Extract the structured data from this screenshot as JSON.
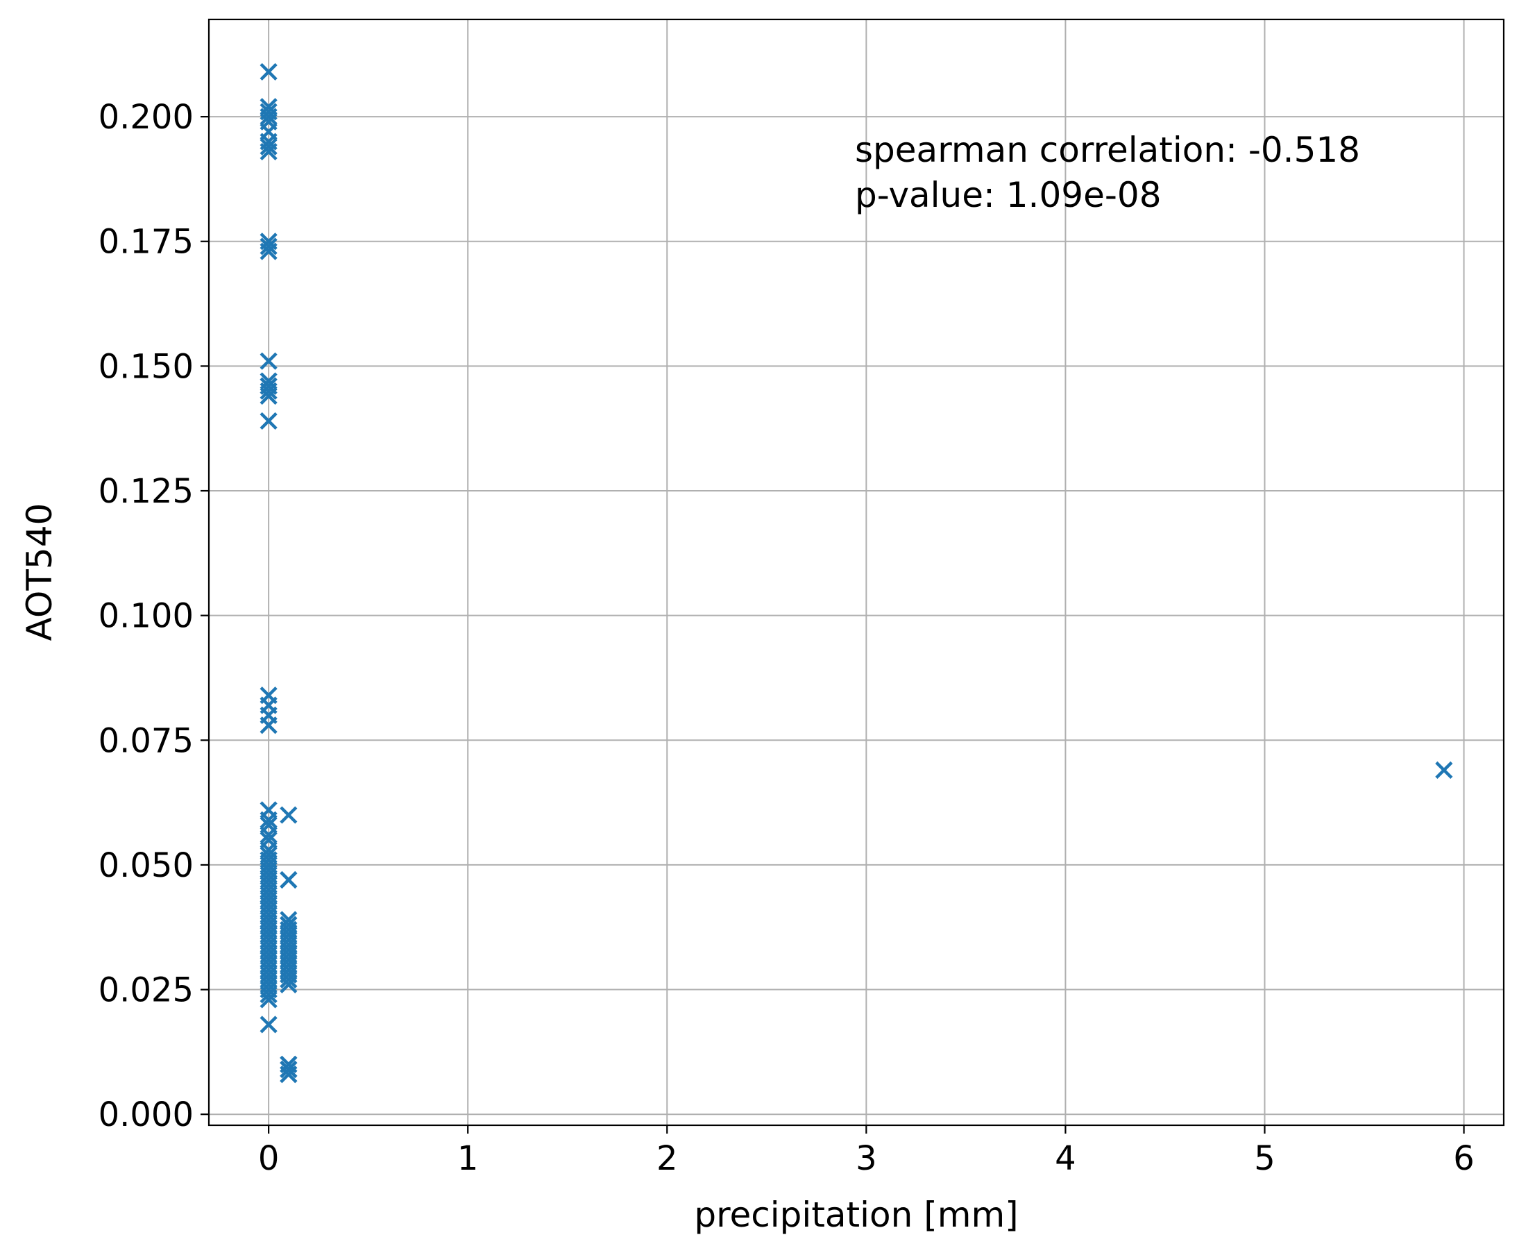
{
  "chart_data": {
    "type": "scatter",
    "title": "",
    "xlabel": "precipitation [mm]",
    "ylabel": "AOT540",
    "xlim": [
      -0.3,
      6.2
    ],
    "ylim": [
      -0.0022,
      0.2195
    ],
    "xticks": [
      0,
      1,
      2,
      3,
      4,
      5,
      6
    ],
    "xtick_labels": [
      "0",
      "1",
      "2",
      "3",
      "4",
      "5",
      "6"
    ],
    "yticks": [
      0,
      0.025,
      0.05,
      0.075,
      0.1,
      0.125,
      0.15,
      0.175,
      0.2
    ],
    "ytick_labels": [
      "0.000",
      "0.025",
      "0.050",
      "0.075",
      "0.100",
      "0.125",
      "0.150",
      "0.175",
      "0.200"
    ],
    "grid": true,
    "marker": "x",
    "color": "#1f77b4",
    "annotation": {
      "lines": [
        "spearman correlation: -0.518",
        "p-value: 1.09e-08"
      ],
      "position": "top-right"
    },
    "series": [
      {
        "x": [
          0,
          0,
          0,
          0,
          0,
          0,
          0,
          0,
          0,
          0,
          0,
          0,
          0,
          0,
          0,
          0,
          0,
          0,
          0,
          0,
          0,
          0,
          0,
          0,
          0,
          0,
          0,
          0,
          0,
          0,
          0,
          0,
          0,
          0,
          0,
          0,
          0,
          0,
          0,
          0,
          0,
          0,
          0,
          0,
          0,
          0,
          0,
          0,
          0,
          0,
          0,
          0,
          0,
          0,
          0,
          0,
          0,
          0,
          0,
          0,
          0,
          0,
          0,
          0,
          0,
          0,
          0.1,
          0.1,
          0.1,
          0.1,
          0.1,
          0.1,
          0.1,
          0.1,
          0.1,
          0.1,
          0.1,
          0.1,
          0.1,
          0.1,
          0.1,
          0.1,
          0.1,
          0.1,
          0.1,
          0.1,
          0.1,
          0.1,
          0.1,
          0.1,
          0.1,
          0.1,
          0.1,
          0.1,
          0.1,
          0.1,
          0.1,
          0.1,
          0.1,
          0.1,
          0.1,
          0.1,
          0.1,
          0.1,
          0.1,
          0.1,
          5.9
        ],
        "y": [
          0.209,
          0.202,
          0.201,
          0.2,
          0.199,
          0.197,
          0.195,
          0.194,
          0.193,
          0.175,
          0.174,
          0.173,
          0.151,
          0.147,
          0.146,
          0.146,
          0.145,
          0.144,
          0.139,
          0.084,
          0.082,
          0.08,
          0.078,
          0.061,
          0.059,
          0.058,
          0.056,
          0.055,
          0.053,
          0.052,
          0.051,
          0.05,
          0.049,
          0.048,
          0.047,
          0.046,
          0.045,
          0.044,
          0.043,
          0.042,
          0.041,
          0.04,
          0.039,
          0.038,
          0.037,
          0.036,
          0.035,
          0.034,
          0.033,
          0.032,
          0.031,
          0.03,
          0.029,
          0.028,
          0.027,
          0.026,
          0.024,
          0.023,
          0.018,
          0.049,
          0.044,
          0.039,
          0.036,
          0.031,
          0.027,
          0.025,
          0.06,
          0.047,
          0.047,
          0.039,
          0.038,
          0.038,
          0.037,
          0.036,
          0.036,
          0.035,
          0.035,
          0.034,
          0.034,
          0.033,
          0.033,
          0.032,
          0.032,
          0.031,
          0.031,
          0.03,
          0.03,
          0.029,
          0.029,
          0.028,
          0.028,
          0.027,
          0.027,
          0.026,
          0.037,
          0.033,
          0.029,
          0.031,
          0.035,
          0.01,
          0.009,
          0.009,
          0.008,
          0.008,
          0.01,
          0.009,
          0.069
        ]
      }
    ]
  }
}
